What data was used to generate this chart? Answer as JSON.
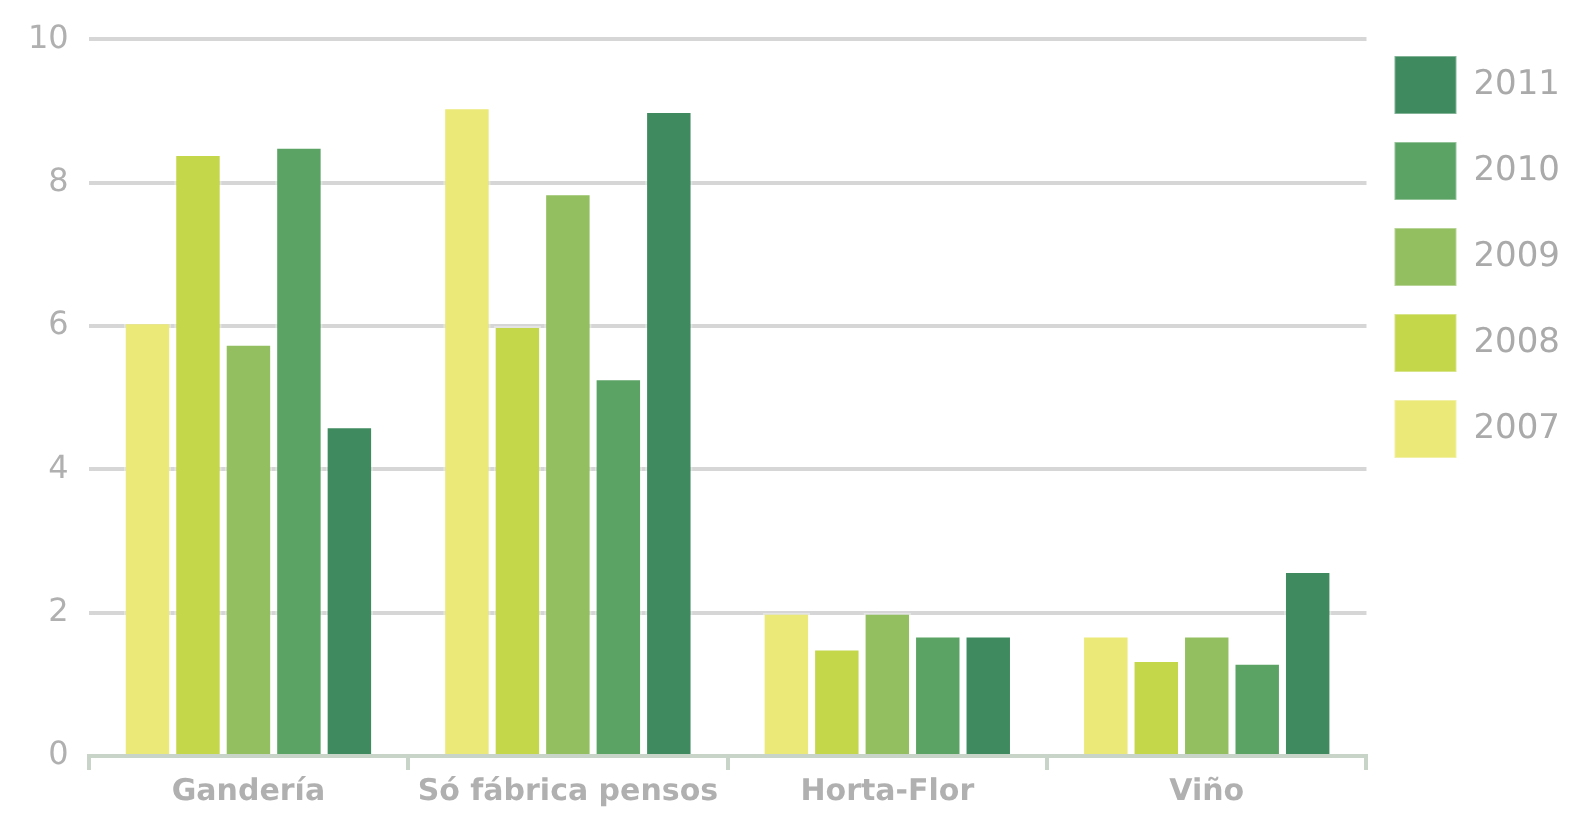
{
  "chart_data": {
    "type": "bar",
    "categories": [
      "Gandería",
      "Só fábrica pensos",
      "Horta-Flor",
      "Viño"
    ],
    "series": [
      {
        "name": "2007",
        "color": "#ebe977",
        "values": [
          6.05,
          9.05,
          2.0,
          1.68
        ]
      },
      {
        "name": "2008",
        "color": "#c4d64a",
        "values": [
          8.4,
          6.0,
          1.5,
          1.34
        ]
      },
      {
        "name": "2009",
        "color": "#93bf60",
        "values": [
          5.75,
          7.85,
          2.0,
          1.68
        ]
      },
      {
        "name": "2010",
        "color": "#5ba364",
        "values": [
          8.5,
          5.27,
          1.68,
          1.3
        ]
      },
      {
        "name": "2011",
        "color": "#3f8b5f",
        "values": [
          4.6,
          9.0,
          1.68,
          2.58
        ]
      }
    ],
    "ylim": [
      0,
      10
    ],
    "yticks": [
      0,
      2,
      4,
      6,
      8,
      10
    ],
    "grid": "y",
    "legend": "right"
  }
}
